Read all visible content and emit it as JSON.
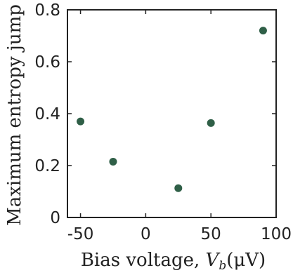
{
  "chart_data": {
    "type": "scatter",
    "title": "",
    "xlabel": "Bias voltage, V_b(μV)",
    "xlabel_parts": {
      "text": "Bias voltage, ",
      "var": "V",
      "sub": "b",
      "unit": "(μV)"
    },
    "ylabel": "Maximum entropy jump",
    "xlim": [
      -60,
      100
    ],
    "ylim": [
      0,
      0.8
    ],
    "x_ticks": [
      -50,
      0,
      50,
      100
    ],
    "x_tick_labels": [
      "-50",
      "0",
      "50",
      "100"
    ],
    "y_ticks": [
      0,
      0.2,
      0.4,
      0.6,
      0.8
    ],
    "y_tick_labels": [
      "0",
      "0.2",
      "0.4",
      "0.6",
      "0.8"
    ],
    "grid": false,
    "legend": "none",
    "marker_color": "#2f5f47",
    "series": [
      {
        "points": [
          {
            "x": -50,
            "y": 0.37
          },
          {
            "x": -25,
            "y": 0.215
          },
          {
            "x": 25,
            "y": 0.113
          },
          {
            "x": 50,
            "y": 0.364
          },
          {
            "x": 90,
            "y": 0.72
          }
        ]
      }
    ]
  }
}
